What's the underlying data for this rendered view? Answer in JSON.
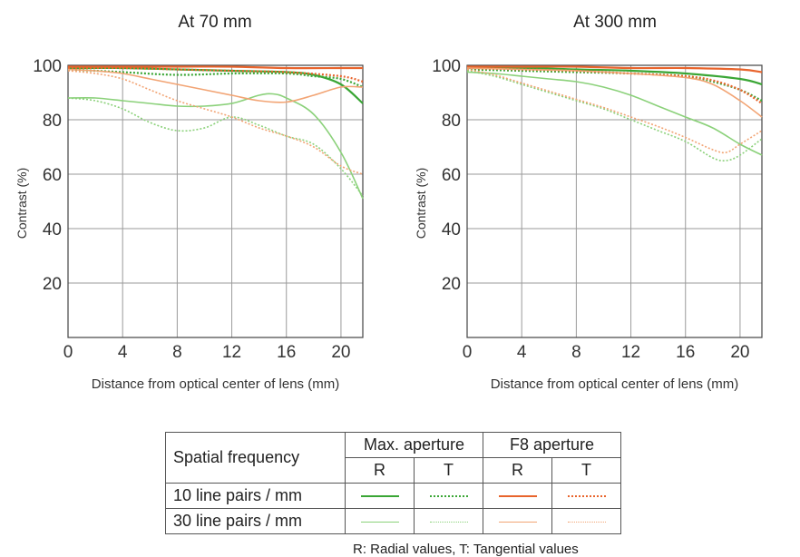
{
  "chart_data": [
    {
      "type": "line",
      "title": "At 70 mm",
      "xlabel": "Distance from optical center of lens (mm)",
      "ylabel": "Contrast (%)",
      "xlim": [
        0,
        21.6
      ],
      "ylim": [
        0,
        100
      ],
      "xticks": [
        "0",
        "4",
        "8",
        "12",
        "16",
        "20"
      ],
      "yticks": [
        "100",
        "80",
        "60",
        "40",
        "20"
      ],
      "grid": true,
      "series": [
        {
          "name": "10 line pairs / mm Max. aperture R",
          "x": [
            0,
            4,
            8,
            12,
            16,
            18,
            20,
            21.6
          ],
          "y": [
            99,
            99,
            98.5,
            98,
            97.5,
            96.5,
            93,
            86
          ]
        },
        {
          "name": "10 line pairs / mm Max. aperture T",
          "x": [
            0,
            4,
            8,
            12,
            16,
            18,
            20,
            21.6
          ],
          "y": [
            98.5,
            97.5,
            96.5,
            97,
            97,
            96,
            95,
            92
          ]
        },
        {
          "name": "10 line pairs / mm F8 aperture R",
          "x": [
            0,
            4,
            8,
            12,
            16,
            20,
            21.6
          ],
          "y": [
            99.5,
            99.5,
            99.5,
            99.5,
            99,
            99,
            99
          ]
        },
        {
          "name": "10 line pairs / mm F8 aperture T",
          "x": [
            0,
            4,
            8,
            12,
            16,
            20,
            21.6
          ],
          "y": [
            99,
            99,
            98.5,
            98,
            97.5,
            96,
            94
          ]
        },
        {
          "name": "30 line pairs / mm Max. aperture R",
          "x": [
            0,
            2,
            4,
            6,
            8,
            10,
            12,
            14,
            15,
            16,
            18,
            20,
            21.6
          ],
          "y": [
            88,
            88,
            87,
            86,
            85,
            85,
            86,
            89,
            89.5,
            88,
            82,
            68,
            51
          ]
        },
        {
          "name": "30 line pairs / mm Max. aperture T",
          "x": [
            0,
            2,
            4,
            6,
            8,
            10,
            12,
            14,
            16,
            18,
            20,
            21.6
          ],
          "y": [
            88,
            87,
            84,
            79,
            76,
            77,
            81,
            78,
            74,
            71,
            62,
            52
          ]
        },
        {
          "name": "30 line pairs / mm F8 aperture R",
          "x": [
            0,
            2,
            4,
            6,
            8,
            10,
            12,
            14,
            16,
            18,
            20,
            21.6
          ],
          "y": [
            98.5,
            98,
            97,
            95,
            93,
            91,
            89,
            87,
            86.5,
            89,
            92,
            92
          ]
        },
        {
          "name": "30 line pairs / mm F8 aperture T",
          "x": [
            0,
            2,
            4,
            6,
            8,
            10,
            12,
            14,
            16,
            18,
            20,
            21.6
          ],
          "y": [
            98,
            97,
            95,
            91,
            87,
            84,
            81,
            77,
            74,
            70,
            63,
            60
          ]
        }
      ]
    },
    {
      "type": "line",
      "title": "At 300 mm",
      "xlabel": "Distance from optical center of lens (mm)",
      "ylabel": "Contrast (%)",
      "xlim": [
        0,
        21.6
      ],
      "ylim": [
        0,
        100
      ],
      "xticks": [
        "0",
        "4",
        "8",
        "12",
        "16",
        "20"
      ],
      "yticks": [
        "100",
        "80",
        "60",
        "40",
        "20"
      ],
      "grid": true,
      "series": [
        {
          "name": "10 line pairs / mm Max. aperture R",
          "x": [
            0,
            4,
            8,
            12,
            16,
            20,
            21.6
          ],
          "y": [
            99,
            99,
            98.5,
            98,
            97,
            95,
            93
          ]
        },
        {
          "name": "10 line pairs / mm Max. aperture T",
          "x": [
            0,
            4,
            8,
            12,
            16,
            18,
            20,
            21.6
          ],
          "y": [
            98.5,
            98,
            97.5,
            97,
            96,
            94,
            91,
            87
          ]
        },
        {
          "name": "10 line pairs / mm F8 aperture R",
          "x": [
            0,
            4,
            8,
            12,
            16,
            20,
            21.6
          ],
          "y": [
            99.5,
            99.5,
            99.5,
            99,
            99,
            98.5,
            97.5
          ]
        },
        {
          "name": "10 line pairs / mm F8 aperture T",
          "x": [
            0,
            4,
            8,
            12,
            16,
            18,
            20,
            21.6
          ],
          "y": [
            99,
            98.5,
            98,
            97,
            96,
            94.5,
            91,
            86
          ]
        },
        {
          "name": "30 line pairs / mm Max. aperture R",
          "x": [
            0,
            2,
            4,
            6,
            8,
            10,
            12,
            14,
            16,
            18,
            20,
            21.6
          ],
          "y": [
            97.5,
            97,
            96,
            95,
            94,
            92,
            89,
            85,
            81,
            77,
            71,
            67
          ]
        },
        {
          "name": "30 line pairs / mm Max. aperture T",
          "x": [
            0,
            2,
            4,
            6,
            8,
            10,
            12,
            14,
            16,
            18,
            19,
            20,
            21.6
          ],
          "y": [
            98,
            96,
            93,
            90,
            87,
            84,
            80,
            76,
            72,
            66,
            65,
            67,
            73
          ]
        },
        {
          "name": "30 line pairs / mm F8 aperture R",
          "x": [
            0,
            4,
            8,
            12,
            16,
            18,
            20,
            21.6
          ],
          "y": [
            99,
            98.5,
            98,
            97,
            95.5,
            93,
            87,
            81
          ]
        },
        {
          "name": "30 line pairs / mm F8 aperture T",
          "x": [
            0,
            2,
            4,
            6,
            8,
            10,
            12,
            14,
            16,
            18,
            19,
            20,
            21.6
          ],
          "y": [
            98.5,
            96.5,
            93.5,
            90.5,
            87.5,
            84.5,
            81,
            77.5,
            73.5,
            69,
            68,
            71,
            76
          ]
        }
      ]
    }
  ],
  "series_styles": [
    {
      "color": "#3aa635",
      "dash": "none",
      "width": 2.2
    },
    {
      "color": "#3aa635",
      "dash": "2 2",
      "width": 2.2
    },
    {
      "color": "#e8642c",
      "dash": "none",
      "width": 2.2
    },
    {
      "color": "#e8642c",
      "dash": "2 2",
      "width": 2.2
    },
    {
      "color": "#8bd17a",
      "dash": "none",
      "width": 1.6
    },
    {
      "color": "#8bd17a",
      "dash": "2 2",
      "width": 1.6
    },
    {
      "color": "#f2a474",
      "dash": "none",
      "width": 1.6
    },
    {
      "color": "#f2a474",
      "dash": "2 2",
      "width": 1.6
    }
  ],
  "legend": {
    "spatial_frequency": "Spatial frequency",
    "max_aperture": "Max. aperture",
    "f8_aperture": "F8 aperture",
    "r": "R",
    "t": "T",
    "row_10": "10 line pairs / mm",
    "row_30": "30 line pairs / mm"
  },
  "footnote": "R: Radial values, T: Tangential values"
}
